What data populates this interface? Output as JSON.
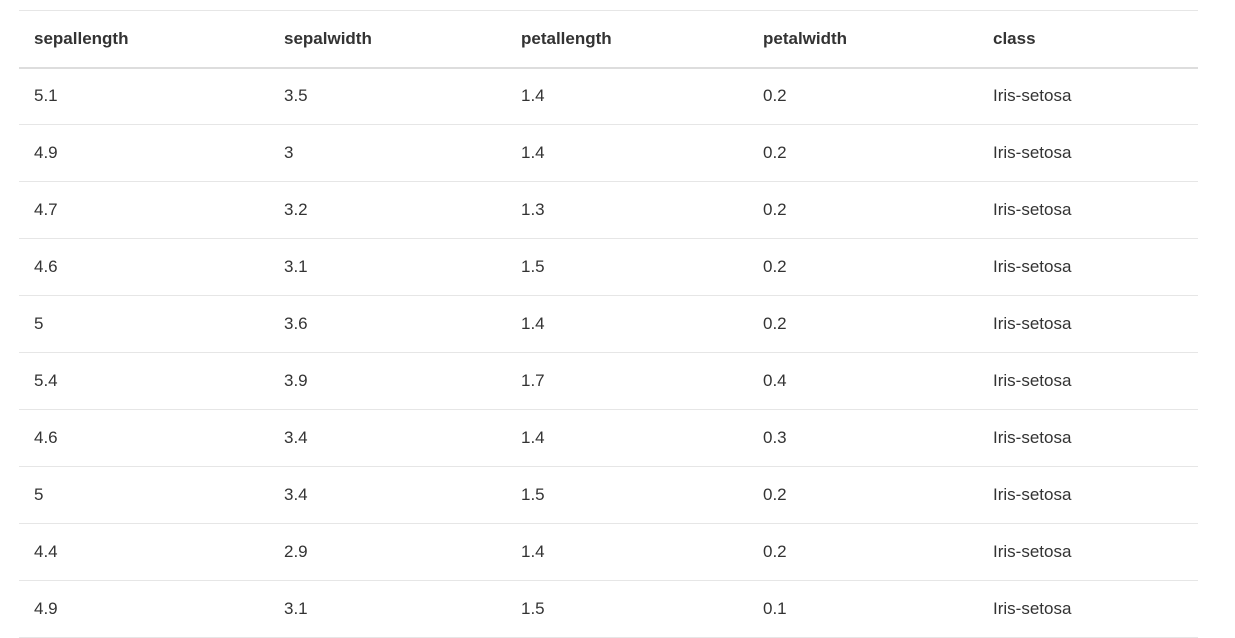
{
  "table": {
    "columns": [
      "sepallength",
      "sepalwidth",
      "petallength",
      "petalwidth",
      "class"
    ],
    "rows": [
      [
        "5.1",
        "3.5",
        "1.4",
        "0.2",
        "Iris-setosa"
      ],
      [
        "4.9",
        "3",
        "1.4",
        "0.2",
        "Iris-setosa"
      ],
      [
        "4.7",
        "3.2",
        "1.3",
        "0.2",
        "Iris-setosa"
      ],
      [
        "4.6",
        "3.1",
        "1.5",
        "0.2",
        "Iris-setosa"
      ],
      [
        "5",
        "3.6",
        "1.4",
        "0.2",
        "Iris-setosa"
      ],
      [
        "5.4",
        "3.9",
        "1.7",
        "0.4",
        "Iris-setosa"
      ],
      [
        "4.6",
        "3.4",
        "1.4",
        "0.3",
        "Iris-setosa"
      ],
      [
        "5",
        "3.4",
        "1.5",
        "0.2",
        "Iris-setosa"
      ],
      [
        "4.4",
        "2.9",
        "1.4",
        "0.2",
        "Iris-setosa"
      ],
      [
        "4.9",
        "3.1",
        "1.5",
        "0.1",
        "Iris-setosa"
      ]
    ]
  }
}
